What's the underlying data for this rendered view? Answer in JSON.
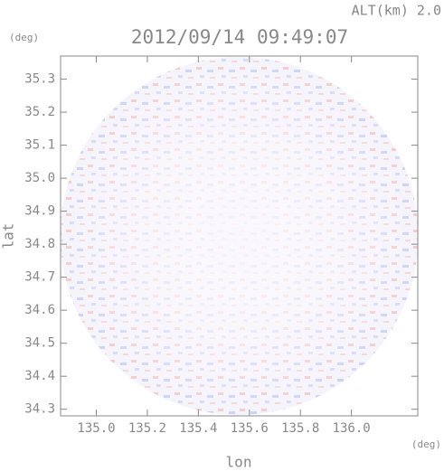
{
  "chart_data": {
    "type": "image",
    "annotation": "ALT(km) 2.0",
    "title": "2012/09/14 09:49:07",
    "ylabel": "lat",
    "yunit": "(deg)",
    "xlabel": "lon",
    "xunit": "(deg)",
    "xlim": [
      134.86,
      136.26
    ],
    "ylim": [
      34.28,
      35.37
    ],
    "xticks": [
      {
        "value": 135,
        "label": "135.0"
      },
      135.2,
      135.4,
      135.6,
      135.8,
      {
        "value": 136,
        "label": "136.0"
      }
    ],
    "yticks": [
      35.3,
      35.2,
      35.1,
      {
        "value": 35,
        "label": "35.0"
      },
      34.9,
      34.8,
      34.7,
      34.6,
      34.5,
      34.4,
      34.3
    ]
  }
}
